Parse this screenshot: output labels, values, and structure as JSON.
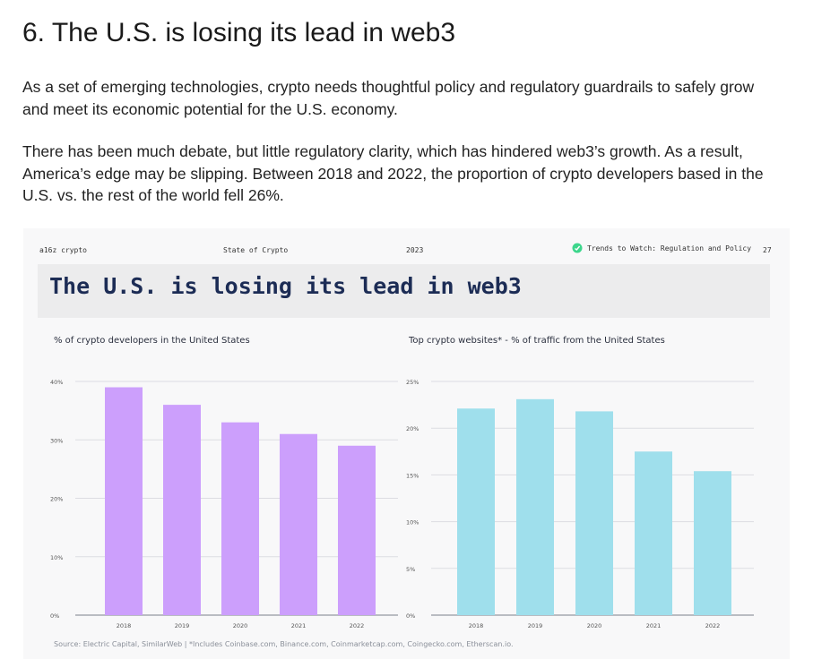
{
  "article": {
    "title": "6. The U.S. is losing its lead in web3",
    "paragraph1": "As a set of emerging technologies, crypto needs thoughtful policy and regulatory guardrails to safely grow and meet its economic potential for the U.S. economy.",
    "paragraph2": "There has been much debate, but little regulatory clarity, which has hindered web3’s growth. As a result, America’s edge may be slipping. Between 2018 and 2022, the proportion of crypto developers based in the U.S. vs. the rest of the world fell 26%."
  },
  "slide": {
    "brand": "a16z crypto",
    "report": "State of Crypto",
    "year": "2023",
    "section": "Trends to Watch: Regulation and Policy",
    "section_icon": "leaf-icon",
    "page": "27",
    "title": "The U.S. is losing its lead in web3",
    "source": "Source: Electric Capital, SimilarWeb | *Includes Coinbase.com, Binance.com, Coinmarketcap.com, Coingecko.com, Etherscan.io."
  },
  "colors": {
    "title_color": "#1c2c55",
    "chart1_bar": "#cc9ffc",
    "chart2_bar": "#9fdfec",
    "icon_green": "#3dd68c"
  },
  "chart_data": [
    {
      "type": "bar",
      "title": "% of crypto developers in the United States",
      "categories": [
        "2018",
        "2019",
        "2020",
        "2021",
        "2022"
      ],
      "values": [
        39,
        36,
        33,
        31,
        29
      ],
      "y_ticks": [
        "0%",
        "10%",
        "20%",
        "30%",
        "40%"
      ],
      "ylim": [
        0,
        40
      ],
      "grid": true,
      "color": "#cc9ffc"
    },
    {
      "type": "bar",
      "title": "Top crypto websites* - % of traffic from the United States",
      "categories": [
        "2018",
        "2019",
        "2020",
        "2021",
        "2022"
      ],
      "values": [
        22.1,
        23.1,
        21.8,
        17.5,
        15.4
      ],
      "y_ticks": [
        "0%",
        "5%",
        "10%",
        "15%",
        "20%",
        "25%"
      ],
      "ylim": [
        0,
        25
      ],
      "grid": true,
      "color": "#9fdfec"
    }
  ]
}
